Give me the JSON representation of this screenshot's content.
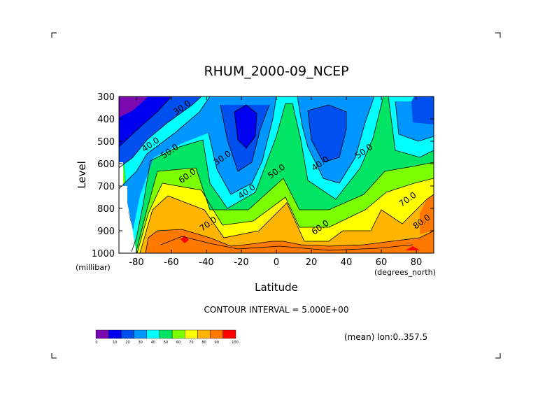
{
  "chart_data": {
    "type": "contour",
    "title": "RHUM_2000-09_NCEP",
    "xlabel": "Latitude",
    "ylabel": "Level",
    "x_unit_label": "(degrees_north)",
    "y_unit_label": "(millibar)",
    "x_ticks": [
      -80,
      -60,
      -40,
      -20,
      0,
      20,
      40,
      60,
      80
    ],
    "y_ticks": [
      300,
      400,
      500,
      600,
      700,
      800,
      900,
      1000
    ],
    "xlim": [
      -90,
      90
    ],
    "ylim": [
      1000,
      300
    ],
    "contour_interval_label": "CONTOUR INTERVAL = 5.000E+00",
    "footnote": "(mean) lon:0..357.5",
    "colorbar": {
      "levels": [
        0,
        10,
        20,
        30,
        40,
        50,
        60,
        70,
        80,
        90,
        100
      ],
      "colors": [
        "#7a0ab0",
        "#0000f0",
        "#0050f0",
        "#0096ff",
        "#00ffff",
        "#00e664",
        "#7cff00",
        "#ffff00",
        "#ffb400",
        "#ff7800",
        "#ff0000"
      ]
    },
    "contour_labels": [
      {
        "text": "30.0",
        "lat": -53,
        "lev": 360
      },
      {
        "text": "40.0",
        "lat": -71,
        "lev": 525
      },
      {
        "text": "50.0",
        "lat": -60,
        "lev": 555
      },
      {
        "text": "60.0",
        "lat": -50,
        "lev": 665
      },
      {
        "text": "70.0",
        "lat": -38,
        "lev": 880
      },
      {
        "text": "30.0",
        "lat": -30,
        "lev": 585
      },
      {
        "text": "40.0",
        "lat": -16,
        "lev": 735
      },
      {
        "text": "50.0",
        "lat": 1,
        "lev": 645
      },
      {
        "text": "40.0",
        "lat": 26,
        "lev": 610
      },
      {
        "text": "50.0",
        "lat": 51,
        "lev": 555
      },
      {
        "text": "60.0",
        "lat": 26,
        "lev": 895
      },
      {
        "text": "70.0",
        "lat": 76,
        "lev": 770
      },
      {
        "text": "80.0",
        "lat": 84,
        "lev": 870
      }
    ]
  }
}
